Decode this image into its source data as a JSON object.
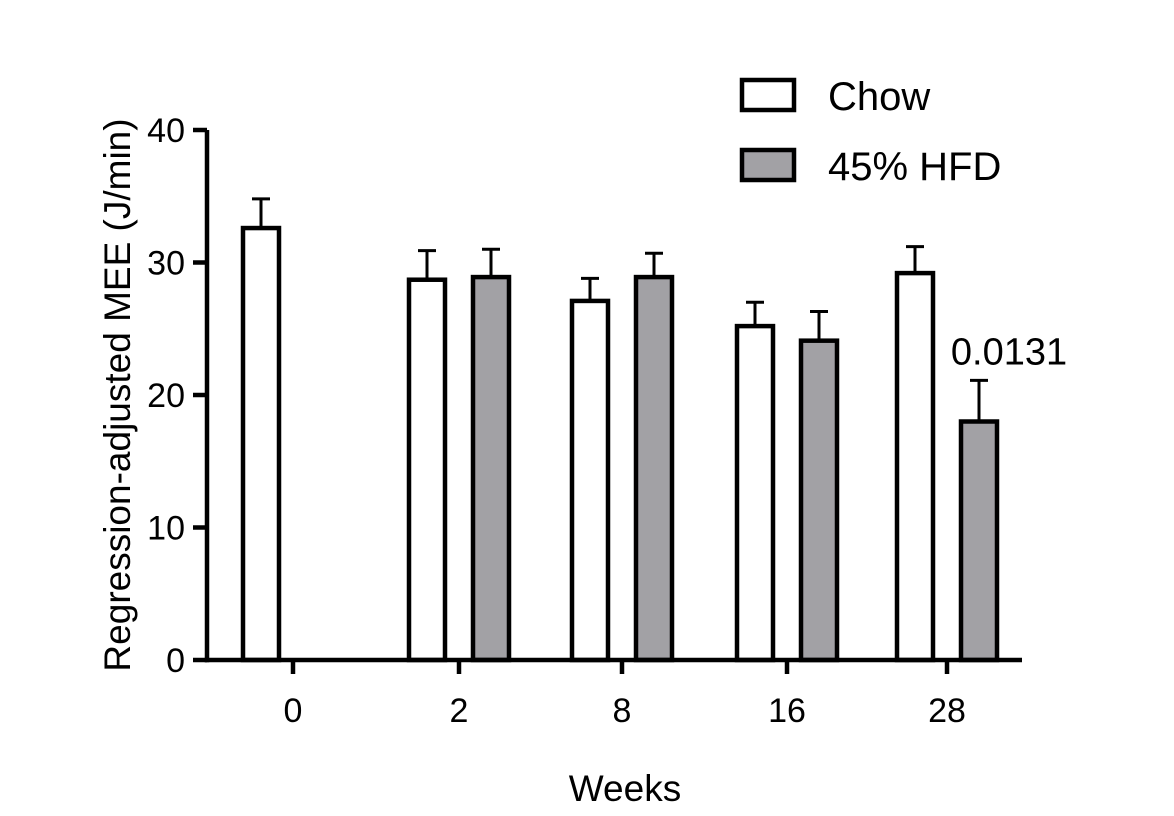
{
  "chart_data": {
    "type": "bar",
    "title": "",
    "xlabel": "Weeks",
    "ylabel": "Regression-adjusted MEE (J/min)",
    "ylim": [
      0,
      40
    ],
    "yticks": [
      0,
      10,
      20,
      30,
      40
    ],
    "categories": [
      "0",
      "2",
      "8",
      "16",
      "28"
    ],
    "series": [
      {
        "name": "Chow",
        "color": "#ffffff",
        "values": [
          32.6,
          28.7,
          27.1,
          25.2,
          29.2
        ],
        "error": [
          2.2,
          2.2,
          1.7,
          1.8,
          2.0
        ]
      },
      {
        "name": "45% HFD",
        "color": "#a2a1a5",
        "values": [
          null,
          28.9,
          28.9,
          24.1,
          18.0
        ],
        "error": [
          null,
          2.1,
          1.8,
          2.2,
          3.1
        ]
      }
    ],
    "annotations": [
      {
        "category": "28",
        "series": "45% HFD",
        "text": "0.0131"
      }
    ],
    "legend": {
      "position": "top-right"
    }
  }
}
